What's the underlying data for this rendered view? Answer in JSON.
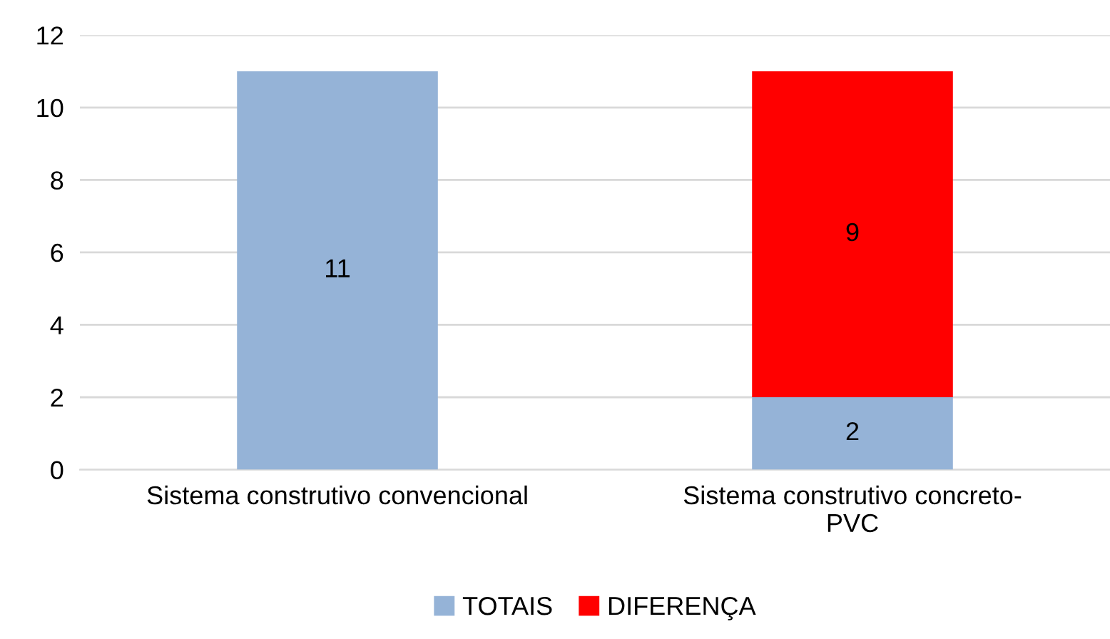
{
  "chart_data": {
    "type": "bar",
    "stacked": true,
    "categories": [
      "Sistema construtivo convencional",
      "Sistema construtivo concreto-PVC"
    ],
    "series": [
      {
        "name": "TOTAIS",
        "color": "#95b3d7",
        "values": [
          11,
          2
        ]
      },
      {
        "name": "DIFERENÇA",
        "color": "#ff0000",
        "values": [
          null,
          9
        ]
      }
    ],
    "ylim": [
      0,
      12
    ],
    "yticks": [
      0,
      2,
      4,
      6,
      8,
      10,
      12
    ],
    "grid": "y",
    "legend": "bottom",
    "data_labels": true
  }
}
